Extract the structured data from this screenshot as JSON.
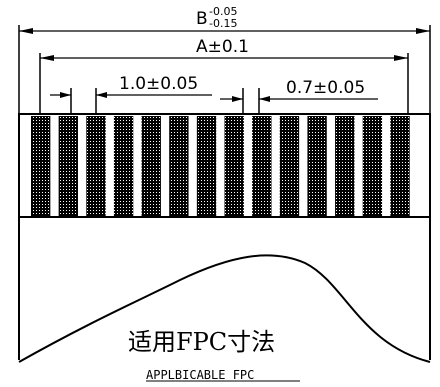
{
  "dimensions": {
    "overall_width": {
      "symbol": "B",
      "upper_tolerance": "-0.05",
      "lower_tolerance": "-0.15"
    },
    "contact_span": {
      "label": "A±0.1"
    },
    "pitch": {
      "label": "1.0±0.05"
    },
    "contact_width": {
      "label": "0.7±0.05"
    }
  },
  "contacts": {
    "count": 14
  },
  "caption": {
    "chinese": "适用FPC寸法",
    "english": "APPLBICABLE FPC"
  }
}
